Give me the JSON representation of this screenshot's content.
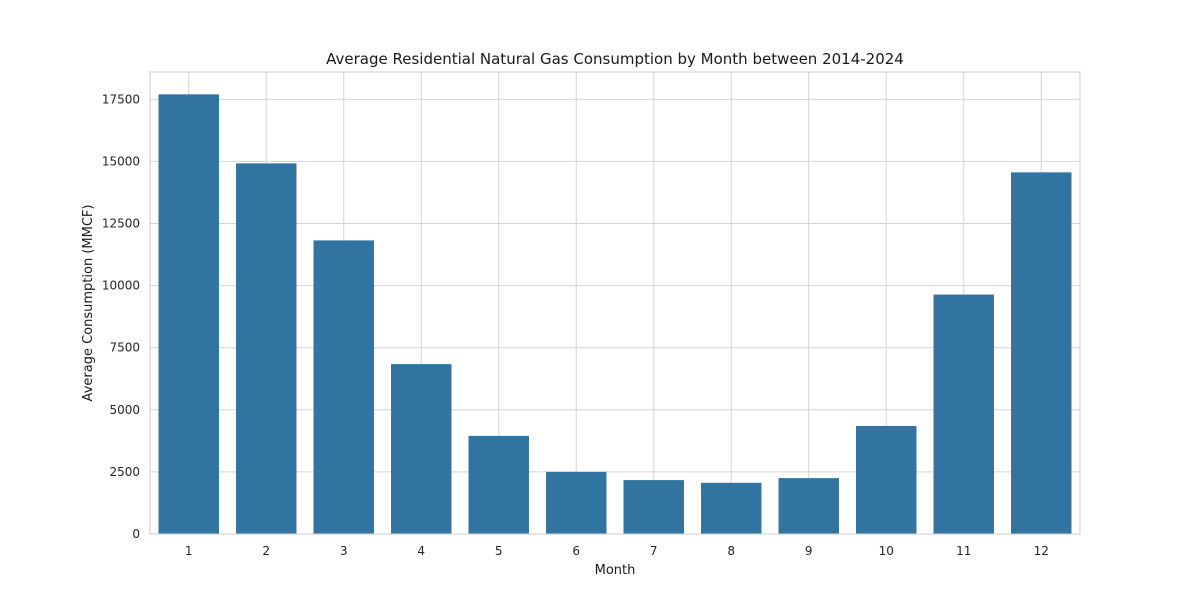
{
  "chart_data": {
    "type": "bar",
    "title": "Average Residential Natural Gas Consumption by Month between 2014-2024",
    "xlabel": "Month",
    "ylabel": "Average Consumption (MMCF)",
    "categories": [
      "1",
      "2",
      "3",
      "4",
      "5",
      "6",
      "7",
      "8",
      "9",
      "10",
      "11",
      "12"
    ],
    "values": [
      17700,
      14920,
      11820,
      6840,
      3950,
      2500,
      2170,
      2060,
      2250,
      4350,
      9640,
      14560
    ],
    "ylim": [
      0,
      18600
    ],
    "yticks": [
      0,
      2500,
      5000,
      7500,
      10000,
      12500,
      15000,
      17500
    ],
    "ytick_labels": [
      "0",
      "2500",
      "5000",
      "7500",
      "10000",
      "12500",
      "15000",
      "17500"
    ],
    "grid": true,
    "colors": {
      "bar": "#3274a1"
    }
  }
}
